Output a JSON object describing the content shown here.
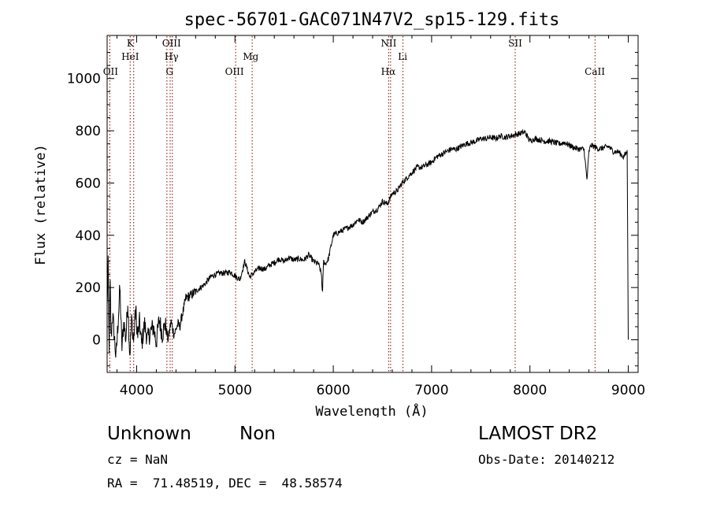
{
  "chart_data": {
    "type": "line",
    "title": "spec-56701-GAC071N47V2_sp15-129.fits",
    "xlabel": "Wavelength (Å)",
    "ylabel": "Flux (relative)",
    "xlim": [
      3700,
      9100
    ],
    "ylim": [
      -125,
      1165
    ],
    "xticks": [
      4000,
      5000,
      6000,
      7000,
      8000,
      9000
    ],
    "yticks": [
      0,
      200,
      400,
      600,
      800,
      1000
    ],
    "line_color": "#000000",
    "marker_color": "#8b0000",
    "spectrum": {
      "x": [
        3700,
        3710,
        3720,
        3730,
        3740,
        3755,
        3770,
        3790,
        3810,
        3830,
        3850,
        3870,
        3890,
        3910,
        3930,
        3950,
        3970,
        3990,
        4010,
        4030,
        4050,
        4080,
        4110,
        4140,
        4170,
        4200,
        4230,
        4260,
        4290,
        4320,
        4350,
        4380,
        4400,
        4420,
        4440,
        4460,
        4480,
        4500,
        4550,
        4600,
        4650,
        4700,
        4750,
        4800,
        4850,
        4900,
        4950,
        5000,
        5050,
        5100,
        5150,
        5200,
        5250,
        5300,
        5350,
        5400,
        5450,
        5500,
        5550,
        5600,
        5650,
        5700,
        5750,
        5800,
        5850,
        5880,
        5890,
        5900,
        5920,
        5950,
        6000,
        6050,
        6100,
        6150,
        6200,
        6250,
        6300,
        6350,
        6400,
        6450,
        6500,
        6550,
        6600,
        6650,
        6700,
        6750,
        6800,
        6850,
        6900,
        6950,
        7000,
        7050,
        7100,
        7150,
        7200,
        7250,
        7300,
        7350,
        7400,
        7450,
        7500,
        7550,
        7600,
        7650,
        7700,
        7750,
        7800,
        7850,
        7900,
        7950,
        8000,
        8050,
        8100,
        8150,
        8200,
        8250,
        8300,
        8350,
        8400,
        8450,
        8500,
        8550,
        8580,
        8600,
        8620,
        8650,
        8700,
        8750,
        8800,
        8850,
        8900,
        8950,
        8990,
        9000
      ],
      "y": [
        120,
        300,
        -50,
        240,
        0,
        100,
        30,
        -70,
        60,
        200,
        -30,
        70,
        0,
        150,
        -60,
        80,
        -10,
        120,
        10,
        70,
        -20,
        60,
        0,
        30,
        50,
        -10,
        80,
        20,
        60,
        0,
        70,
        20,
        40,
        60,
        50,
        90,
        120,
        160,
        170,
        185,
        200,
        215,
        240,
        250,
        255,
        255,
        260,
        245,
        230,
        300,
        240,
        260,
        275,
        270,
        285,
        295,
        310,
        300,
        315,
        305,
        310,
        305,
        325,
        300,
        290,
        250,
        165,
        300,
        290,
        310,
        400,
        410,
        420,
        430,
        440,
        460,
        450,
        470,
        490,
        500,
        530,
        520,
        560,
        570,
        600,
        620,
        640,
        660,
        660,
        670,
        680,
        700,
        710,
        720,
        730,
        730,
        740,
        750,
        755,
        760,
        770,
        770,
        775,
        770,
        780,
        775,
        780,
        785,
        790,
        795,
        760,
        770,
        765,
        760,
        760,
        755,
        750,
        755,
        745,
        735,
        730,
        730,
        610,
        720,
        745,
        740,
        730,
        735,
        740,
        720,
        720,
        700,
        720,
        0
      ]
    },
    "lines": [
      {
        "label": "OII",
        "x": 3727
      },
      {
        "label": "K",
        "x": 3934
      },
      {
        "label": "HeI",
        "x": 3970
      },
      {
        "label": "G",
        "x": 4308
      },
      {
        "label": "Hγ",
        "x": 4341
      },
      {
        "label": "OIII",
        "x": 4363
      },
      {
        "label": "OIII",
        "x": 5007
      },
      {
        "label": "Mg",
        "x": 5175
      },
      {
        "label": "Hα",
        "x": 6563
      },
      {
        "label": "NII",
        "x": 6583
      },
      {
        "label": "Li",
        "x": 6708
      },
      {
        "label": "SII",
        "x": 7850
      },
      {
        "label": "CaII",
        "x": 8662
      }
    ]
  },
  "info": {
    "class": "Unknown",
    "subclass": "Non",
    "survey": "LAMOST DR2",
    "cz": "cz = NaN",
    "obs_date": "Obs-Date: 20140212",
    "coords": "RA =  71.48519, DEC =  48.58574"
  }
}
